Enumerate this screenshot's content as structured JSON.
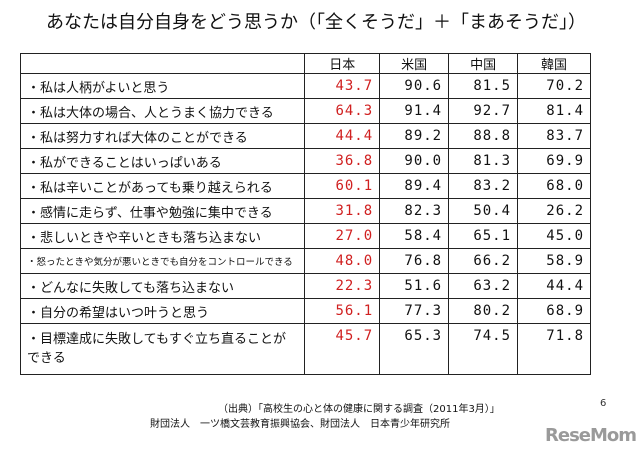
{
  "title": "あなたは自分自身をどう思うか（「全くそうだ」＋「まあそうだ」）",
  "columns": [
    "日本",
    "米国",
    "中国",
    "韓国"
  ],
  "rows": [
    {
      "label": "・私は人柄がよいと思う",
      "values": [
        "43.7",
        "90.6",
        "81.5",
        "70.2"
      ]
    },
    {
      "label": "・私は大体の場合、人とうまく協力できる",
      "values": [
        "64.3",
        "91.4",
        "92.7",
        "81.4"
      ]
    },
    {
      "label": "・私は努力すれば大体のことができる",
      "values": [
        "44.4",
        "89.2",
        "88.8",
        "83.7"
      ]
    },
    {
      "label": "・私ができることはいっぱいある",
      "values": [
        "36.8",
        "90.0",
        "81.3",
        "69.9"
      ]
    },
    {
      "label": "・私は辛いことがあっても乗り越えられる",
      "values": [
        "60.1",
        "89.4",
        "83.2",
        "68.0"
      ]
    },
    {
      "label": "・感情に走らず、仕事や勉強に集中できる",
      "values": [
        "31.8",
        "82.3",
        "50.4",
        "26.2"
      ]
    },
    {
      "label": "・悲しいときや辛いときも落ち込まない",
      "values": [
        "27.0",
        "58.4",
        "65.1",
        "45.0"
      ]
    },
    {
      "label": "・怒ったときや気分が悪いときでも自分をコントロールできる",
      "values": [
        "48.0",
        "76.8",
        "66.2",
        "58.9"
      ]
    },
    {
      "label": "・どんなに失敗しても落ち込まない",
      "values": [
        "22.3",
        "51.6",
        "63.2",
        "44.4"
      ]
    },
    {
      "label": "・自分の希望はいつ叶うと思う",
      "values": [
        "56.1",
        "77.3",
        "80.2",
        "68.9"
      ]
    },
    {
      "label": "・目標達成に失敗してもすぐ立ち直ることができる",
      "values": [
        "45.7",
        "65.3",
        "74.5",
        "71.8"
      ]
    }
  ],
  "source": "（出典）「高校生の心と体の健康に関する調査（2011年3月）」",
  "organizations": "財団法人　一ツ橋文芸教育振興協会、財団法人　日本青少年研究所",
  "page_number": "6",
  "watermark": "ReseMom",
  "colors": {
    "japan_values": "#d02020"
  }
}
